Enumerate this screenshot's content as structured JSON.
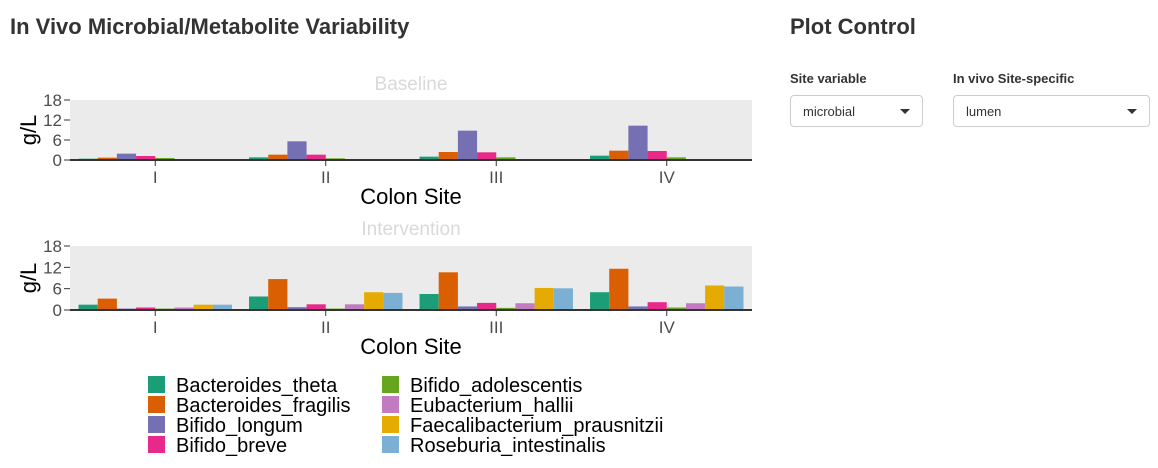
{
  "page": {
    "title": "In Vivo Microbial/Metabolite Variability",
    "sidebar_title": "Plot Control"
  },
  "controls": {
    "site_variable": {
      "label": "Site variable",
      "value": "microbial",
      "icon": "chevron-down-icon"
    },
    "site_specific": {
      "label": "In vivo Site-specific",
      "value": "lumen",
      "icon": "chevron-down-icon"
    }
  },
  "chart_data": {
    "type": "bar",
    "categories": [
      "I",
      "II",
      "III",
      "IV"
    ],
    "xlabel": "Colon Site",
    "ylabel": "g/L",
    "ylim": [
      0,
      18
    ],
    "yticks": [
      0,
      6,
      12,
      18
    ],
    "grid": false,
    "legend_position": "bottom",
    "panel_background": "#ebebeb",
    "legend": [
      {
        "name": "Bacteroides_theta",
        "color": "#1b9e77"
      },
      {
        "name": "Bacteroides_fragilis",
        "color": "#d95f02"
      },
      {
        "name": "Bifido_longum",
        "color": "#7570b3"
      },
      {
        "name": "Bifido_breve",
        "color": "#e7298a"
      },
      {
        "name": "Bifido_adolescentis",
        "color": "#66a61e"
      },
      {
        "name": "Eubacterium_hallii",
        "color": "#c27bc0"
      },
      {
        "name": "Faecalibacterium_prausnitzii",
        "color": "#e6ab02"
      },
      {
        "name": "Roseburia_intestinalis",
        "color": "#7bafd4"
      }
    ],
    "facets": [
      {
        "title": "Baseline",
        "series": [
          {
            "name": "Bacteroides_theta",
            "values": [
              0.4,
              0.8,
              1.0,
              1.3
            ]
          },
          {
            "name": "Bacteroides_fragilis",
            "values": [
              0.7,
              1.6,
              2.4,
              2.8
            ]
          },
          {
            "name": "Bifido_longum",
            "values": [
              1.9,
              5.6,
              8.8,
              10.3
            ]
          },
          {
            "name": "Bifido_breve",
            "values": [
              1.2,
              1.6,
              2.3,
              2.7
            ]
          },
          {
            "name": "Bifido_adolescentis",
            "values": [
              0.6,
              0.5,
              0.8,
              0.8
            ]
          },
          {
            "name": "Eubacterium_hallii",
            "values": [
              0,
              0,
              0,
              0
            ]
          },
          {
            "name": "Faecalibacterium_prausnitzii",
            "values": [
              0,
              0,
              0,
              0
            ]
          },
          {
            "name": "Roseburia_intestinalis",
            "values": [
              0,
              0,
              0,
              0
            ]
          }
        ]
      },
      {
        "title": "Intervention",
        "series": [
          {
            "name": "Bacteroides_theta",
            "values": [
              1.5,
              3.8,
              4.5,
              5.0
            ]
          },
          {
            "name": "Bacteroides_fragilis",
            "values": [
              3.2,
              8.7,
              10.6,
              11.6
            ]
          },
          {
            "name": "Bifido_longum",
            "values": [
              0.4,
              0.8,
              1.0,
              1.0
            ]
          },
          {
            "name": "Bifido_breve",
            "values": [
              0.7,
              1.6,
              2.0,
              2.2
            ]
          },
          {
            "name": "Bifido_adolescentis",
            "values": [
              0.4,
              0.4,
              0.6,
              0.7
            ]
          },
          {
            "name": "Eubacterium_hallii",
            "values": [
              0.7,
              1.6,
              1.9,
              1.9
            ]
          },
          {
            "name": "Faecalibacterium_prausnitzii",
            "values": [
              1.5,
              5.0,
              6.2,
              6.9
            ]
          },
          {
            "name": "Roseburia_intestinalis",
            "values": [
              1.5,
              4.8,
              6.1,
              6.6
            ]
          }
        ]
      }
    ]
  }
}
